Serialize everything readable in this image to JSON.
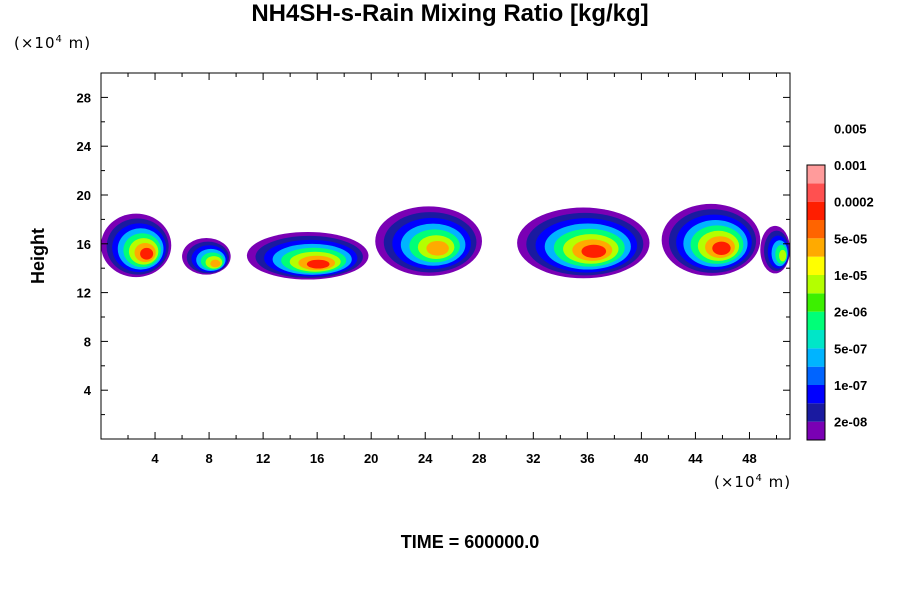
{
  "chart_data": {
    "type": "heatmap",
    "title": "NH4SH-s-Rain Mixing Ratio [kg/kg]",
    "ylabel": "Height",
    "xlabel": "",
    "x_unit_prefix": "(×10",
    "x_unit_exp": "4",
    "x_unit_suffix": " m)",
    "y_unit_prefix": "(×10",
    "y_unit_exp": "4",
    "y_unit_suffix": " m)",
    "xlim": [
      0,
      51
    ],
    "ylim": [
      0,
      30
    ],
    "x_ticks": [
      4,
      8,
      12,
      16,
      20,
      24,
      28,
      32,
      36,
      40,
      44,
      48
    ],
    "y_ticks": [
      4,
      8,
      12,
      16,
      20,
      24,
      28
    ],
    "colorbar": {
      "levels": [
        "2e-08",
        "1e-07",
        "5e-07",
        "2e-06",
        "1e-05",
        "5e-05",
        "0.0002",
        "0.001",
        "0.005"
      ],
      "colors": [
        "#7a00b4",
        "#1a1aa0",
        "#0000ff",
        "#0064ff",
        "#00b4ff",
        "#00e6c8",
        "#00ff78",
        "#3cf000",
        "#b4ff00",
        "#ffff00",
        "#ffaa00",
        "#ff6400",
        "#ff1e00",
        "#ff5050",
        "#ff9b9b"
      ]
    },
    "clouds": [
      {
        "x": [
          0,
          5.2
        ],
        "y": [
          13.6,
          18.8
        ],
        "peak": 7
      },
      {
        "x": [
          6.0,
          9.6
        ],
        "y": [
          13.8,
          16.8
        ],
        "peak": 6
      },
      {
        "x": [
          10.8,
          19.8
        ],
        "y": [
          13.4,
          17.3
        ],
        "peak": 7
      },
      {
        "x": [
          20.3,
          28.2
        ],
        "y": [
          13.7,
          19.4
        ],
        "peak": 6
      },
      {
        "x": [
          30.8,
          40.6
        ],
        "y": [
          13.5,
          19.3
        ],
        "peak": 7
      },
      {
        "x": [
          41.5,
          48.8
        ],
        "y": [
          13.7,
          19.6
        ],
        "peak": 7
      },
      {
        "x": [
          48.8,
          51
        ],
        "y": [
          13.9,
          17.8
        ],
        "peak": 5
      }
    ]
  },
  "footer": {
    "time_label": "TIME = 600000.0"
  }
}
